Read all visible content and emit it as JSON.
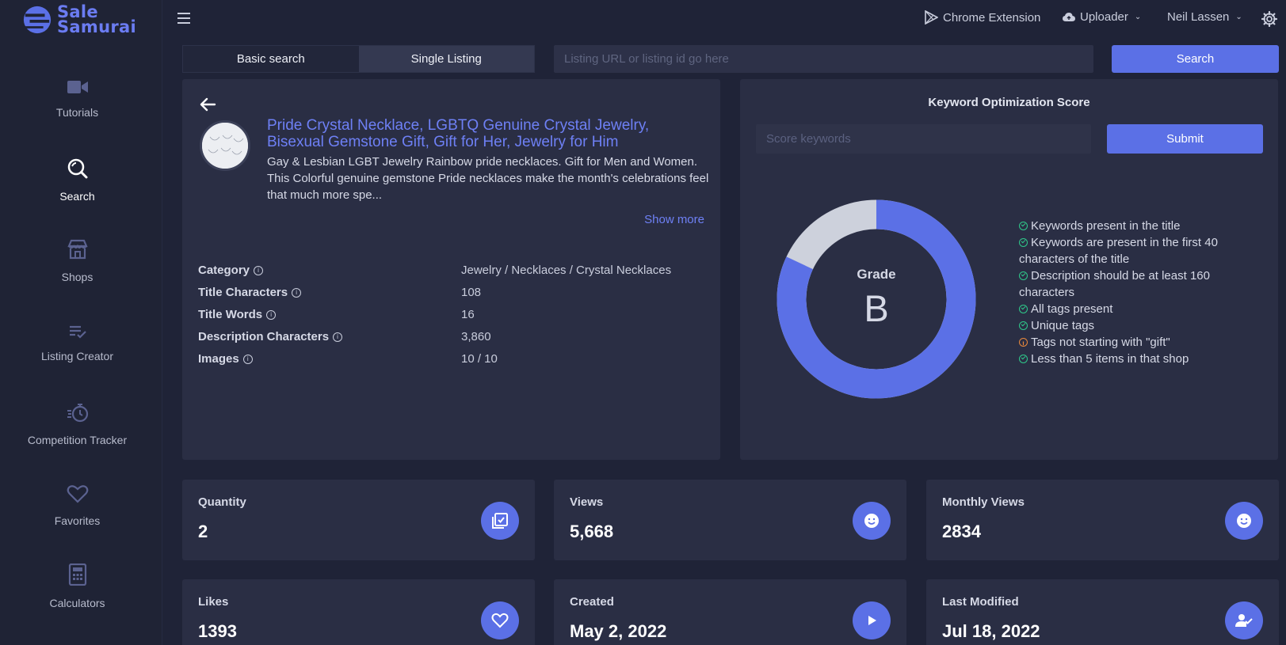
{
  "brand": {
    "line1": "Sale",
    "line2": "Samurai"
  },
  "sidebar": {
    "items": [
      {
        "label": "Tutorials",
        "icon": "video-icon"
      },
      {
        "label": "Search",
        "icon": "search-icon",
        "active": true
      },
      {
        "label": "Shops",
        "icon": "shop-icon"
      },
      {
        "label": "Listing Creator",
        "icon": "list-check-icon"
      },
      {
        "label": "Competition Tracker",
        "icon": "stopwatch-icon"
      },
      {
        "label": "Favorites",
        "icon": "heart-icon"
      },
      {
        "label": "Calculators",
        "icon": "calculator-icon"
      }
    ]
  },
  "topbar": {
    "chrome_extension": "Chrome Extension",
    "uploader": "Uploader",
    "user": "Neil Lassen"
  },
  "search": {
    "tab_basic": "Basic search",
    "tab_single": "Single Listing",
    "placeholder": "Listing URL or listing id go here",
    "button": "Search"
  },
  "listing": {
    "title": "Pride Crystal Necklace, LGBTQ Genuine Crystal Jewelry, Bisexual Gemstone Gift, Gift for Her, Jewelry for Him",
    "description": "Gay & Lesbian LGBT Jewelry Rainbow pride necklaces. Gift for Men and Women. This Colorful genuine gemstone Pride necklaces make the month's celebrations feel that much more spe...",
    "show_more": "Show more",
    "info": [
      {
        "label": "Category",
        "value": "Jewelry / Necklaces / Crystal Necklaces"
      },
      {
        "label": "Title Characters",
        "value": "108"
      },
      {
        "label": "Title Words",
        "value": "16"
      },
      {
        "label": "Description Characters",
        "value": "3,860"
      },
      {
        "label": "Images",
        "value": "10 / 10"
      }
    ]
  },
  "kos": {
    "title": "Keyword Optimization Score",
    "placeholder": "Score keywords",
    "submit": "Submit",
    "grade_label": "Grade",
    "grade": "B",
    "score_fraction": 0.82,
    "colors": {
      "filled": "#5b70e6",
      "empty": "#cdd1dc",
      "ok": "#2fc98b",
      "warn": "#e8883c"
    },
    "checks": [
      {
        "text": "Keywords present in the title",
        "status": "ok"
      },
      {
        "text": "Keywords are present in the first 40 characters of the title",
        "status": "ok"
      },
      {
        "text": "Description should be at least 160 characters",
        "status": "ok"
      },
      {
        "text": "All tags present",
        "status": "ok"
      },
      {
        "text": "Unique tags",
        "status": "ok"
      },
      {
        "text": "Tags not starting with \"gift\"",
        "status": "warn"
      },
      {
        "text": "Less than 5 items in that shop",
        "status": "ok"
      }
    ]
  },
  "stats": [
    {
      "label": "Quantity",
      "value": "2",
      "icon": "checklist-icon"
    },
    {
      "label": "Views",
      "value": "5,668",
      "icon": "smile-icon"
    },
    {
      "label": "Monthly Views",
      "value": "2834",
      "icon": "smile-icon"
    },
    {
      "label": "Likes",
      "value": "1393",
      "icon": "heart-icon"
    },
    {
      "label": "Created",
      "value": "May 2, 2022",
      "icon": "play-icon"
    },
    {
      "label": "Last Modified",
      "value": "Jul 18, 2022",
      "icon": "user-check-icon"
    }
  ]
}
